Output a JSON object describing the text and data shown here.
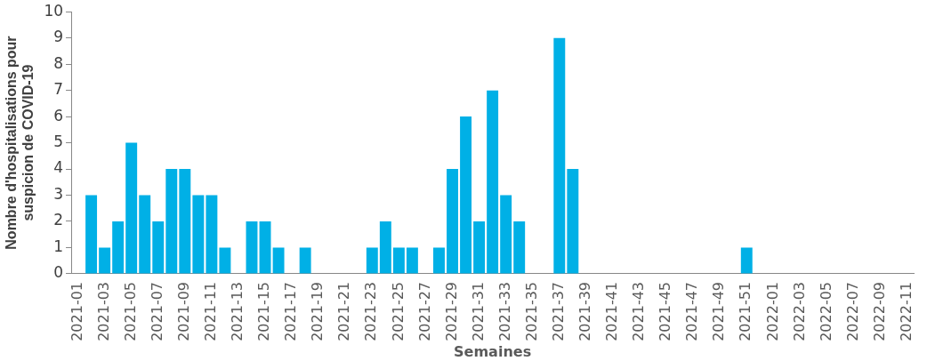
{
  "chart_data": {
    "type": "bar",
    "xlabel": "Semaines",
    "ylabel": "Nombre d'hospitalisations pour suspicion de COVID-19",
    "categories": [
      "2021-01",
      null,
      "2021-03",
      null,
      "2021-05",
      null,
      "2021-07",
      null,
      "2021-09",
      null,
      "2021-11",
      null,
      "2021-13",
      null,
      "2021-15",
      null,
      "2021-17",
      null,
      "2021-19",
      null,
      "2021-21",
      null,
      "2021-23",
      null,
      "2021-25",
      null,
      "2021-27",
      null,
      "2021-29",
      null,
      "2021-31",
      null,
      "2021-33",
      null,
      "2021-35",
      null,
      "2021-37",
      null,
      "2021-39",
      null,
      "2021-41",
      null,
      "2021-43",
      null,
      "2021-45",
      null,
      "2021-47",
      null,
      "2021-49",
      null,
      "2021-51",
      null,
      "2022-01",
      null,
      "2022-03",
      null,
      "2022-05",
      null,
      "2022-07",
      null,
      "2022-09",
      null,
      "2022-11"
    ],
    "values": [
      0,
      3,
      1,
      2,
      5,
      3,
      2,
      4,
      4,
      3,
      3,
      1,
      0,
      2,
      2,
      1,
      0,
      1,
      0,
      0,
      0,
      0,
      1,
      2,
      1,
      1,
      0,
      1,
      4,
      6,
      2,
      7,
      3,
      2,
      0,
      0,
      9,
      4,
      0,
      0,
      0,
      0,
      0,
      0,
      0,
      0,
      0,
      0,
      0,
      0,
      1,
      0,
      0,
      0,
      0,
      0,
      0,
      0,
      0,
      0,
      0,
      0,
      0
    ],
    "color": "#00b0e6",
    "ylim": [
      0,
      10
    ],
    "yticks": [
      0,
      1,
      2,
      3,
      4,
      5,
      6,
      7,
      8,
      9,
      10
    ],
    "grid": false,
    "legend": false
  }
}
